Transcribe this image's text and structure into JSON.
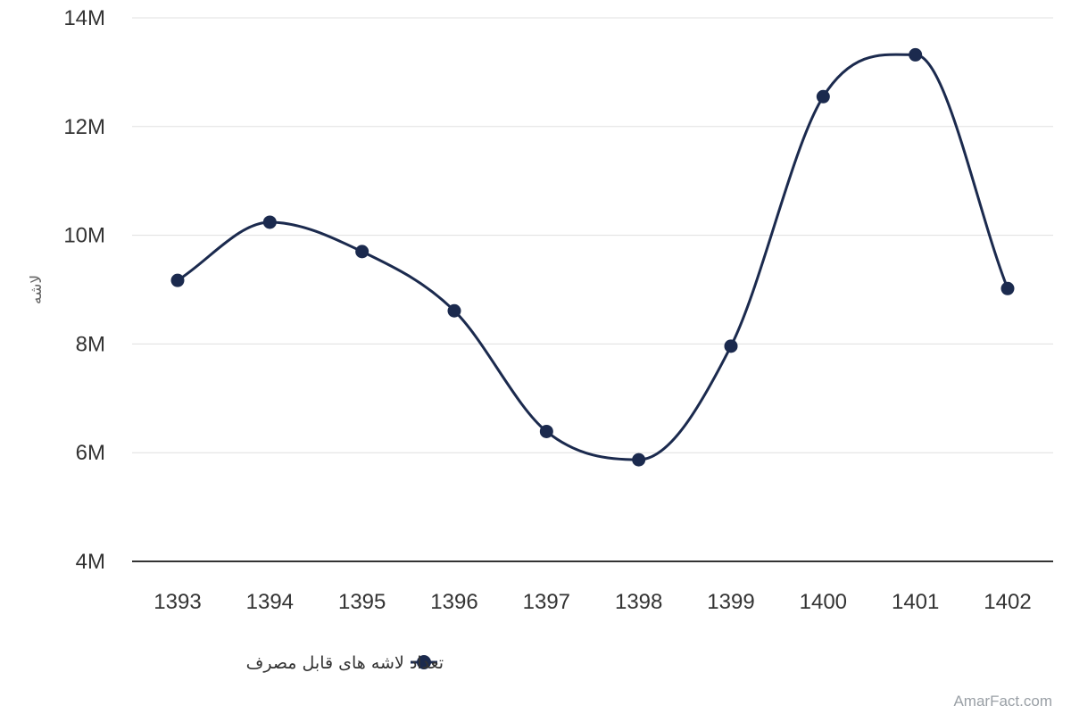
{
  "chart_data": {
    "type": "line",
    "smooth": true,
    "categories": [
      "1393",
      "1394",
      "1395",
      "1396",
      "1397",
      "1398",
      "1399",
      "1400",
      "1401",
      "1402"
    ],
    "series": [
      {
        "name": "تعداد لاشه های قابل مصرف",
        "values": [
          9170000,
          10240000,
          9700000,
          8610000,
          6390000,
          5870000,
          7960000,
          12550000,
          13320000,
          9020000
        ],
        "color": "#1b2a4e"
      }
    ],
    "xlabel": "",
    "ylabel": "لاشه",
    "ylim": [
      4000000,
      14000000
    ],
    "yticks": [
      {
        "value": 4000000,
        "label": "4M"
      },
      {
        "value": 6000000,
        "label": "6M"
      },
      {
        "value": 8000000,
        "label": "8M"
      },
      {
        "value": 10000000,
        "label": "10M"
      },
      {
        "value": 12000000,
        "label": "12M"
      },
      {
        "value": 14000000,
        "label": "14M"
      }
    ],
    "grid": true,
    "legend_position": "bottom-center"
  },
  "colors": {
    "series": "#1b2a4e",
    "grid": "#e0e0e0",
    "axis": "#333333",
    "tick_text": "#333333",
    "watermark": "#9aa0a6"
  },
  "watermark": "AmarFact.com"
}
